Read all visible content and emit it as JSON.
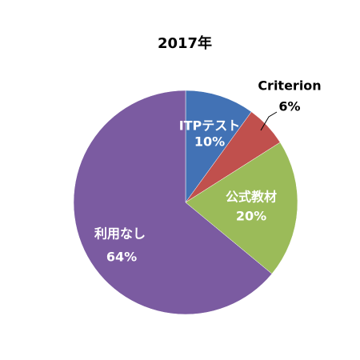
{
  "chart_data": {
    "type": "pie",
    "title": "2017年",
    "categories": [
      "ITPテスト",
      "Criterion",
      "公式教材",
      "利用なし"
    ],
    "values": [
      10,
      6,
      20,
      64
    ],
    "value_labels": [
      "10%",
      "6%",
      "20%",
      "64%"
    ],
    "colors": [
      "#4272b5",
      "#c0504d",
      "#9bbb59",
      "#7b5ba1"
    ]
  }
}
